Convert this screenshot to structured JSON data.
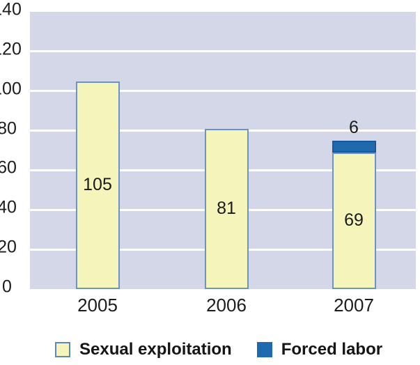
{
  "chart_data": {
    "type": "bar",
    "stacked": true,
    "title": "",
    "xlabel": "",
    "ylabel": "",
    "categories": [
      "2005",
      "2006",
      "2007"
    ],
    "series": [
      {
        "name": "Sexual exploitation",
        "color": "#f5f5bb",
        "border_color": "#6b94c0",
        "values": [
          105,
          81,
          69
        ]
      },
      {
        "name": "Forced labor",
        "color": "#1f69ae",
        "border_color": "#17579b",
        "values": [
          0,
          0,
          6
        ]
      }
    ],
    "ylim": [
      0,
      140
    ],
    "yticks": [
      140,
      120,
      100,
      80,
      60,
      40,
      20,
      0
    ],
    "grid": "horizontal",
    "gridline_color": "#ffffff",
    "plot_background": "#d3d7e8",
    "legend_position": "bottom",
    "value_labels_shown": true
  },
  "legend": {
    "items": [
      {
        "label": "Sexual exploitation",
        "color": "#f5f5bb",
        "border": "#5b87be"
      },
      {
        "label": "Forced labor",
        "color": "#1f69ae",
        "border": "#1f69ae"
      }
    ]
  },
  "colors": {
    "background": "#ffffff",
    "text": "#1c1c1c"
  }
}
